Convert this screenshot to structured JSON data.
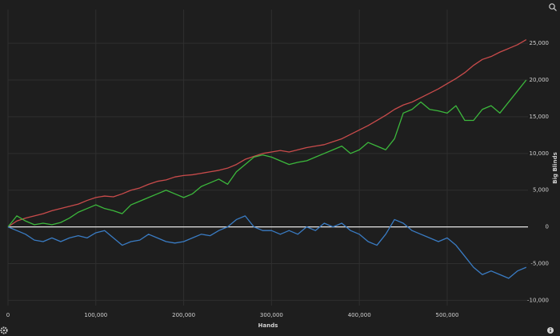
{
  "chart_data": {
    "type": "line",
    "xlabel": "Hands",
    "ylabel": "Big Blinds",
    "x": [
      0,
      10000,
      20000,
      30000,
      40000,
      50000,
      60000,
      70000,
      80000,
      90000,
      100000,
      110000,
      120000,
      130000,
      140000,
      150000,
      160000,
      170000,
      180000,
      190000,
      200000,
      210000,
      220000,
      230000,
      240000,
      250000,
      260000,
      270000,
      280000,
      290000,
      300000,
      310000,
      320000,
      330000,
      340000,
      350000,
      360000,
      370000,
      380000,
      390000,
      400000,
      410000,
      420000,
      430000,
      440000,
      450000,
      460000,
      470000,
      480000,
      490000,
      500000,
      510000,
      520000,
      530000,
      540000,
      550000,
      560000,
      570000,
      580000,
      590000
    ],
    "series": [
      {
        "color": "#c94b4b",
        "values": [
          0,
          800,
          1200,
          1500,
          1800,
          2200,
          2500,
          2800,
          3100,
          3600,
          4000,
          4200,
          4100,
          4500,
          5000,
          5300,
          5800,
          6200,
          6400,
          6800,
          7000,
          7100,
          7300,
          7500,
          7700,
          8000,
          8500,
          9200,
          9600,
          10000,
          10200,
          10400,
          10200,
          10500,
          10800,
          11000,
          11200,
          11600,
          12000,
          12600,
          13200,
          13800,
          14500,
          15200,
          16000,
          16600,
          17000,
          17600,
          18200,
          18800,
          19500,
          20200,
          21000,
          22000,
          22800,
          23200,
          23800,
          24300,
          24800,
          25500
        ]
      },
      {
        "color": "#3cb83c",
        "values": [
          0,
          1500,
          800,
          300,
          500,
          300,
          600,
          1200,
          2000,
          2500,
          3000,
          2500,
          2200,
          1800,
          3000,
          3500,
          4000,
          4500,
          5000,
          4500,
          4000,
          4500,
          5500,
          6000,
          6500,
          5800,
          7500,
          8500,
          9500,
          9800,
          9500,
          9000,
          8500,
          8800,
          9000,
          9500,
          10000,
          10500,
          11000,
          10000,
          10500,
          11500,
          11000,
          10500,
          12000,
          15500,
          16000,
          17000,
          16000,
          15800,
          15500,
          16500,
          14500,
          14500,
          16000,
          16500,
          15500,
          17000,
          18500,
          20000
        ]
      },
      {
        "color": "#3a7cc4",
        "values": [
          0,
          -500,
          -1000,
          -1800,
          -2000,
          -1500,
          -2000,
          -1500,
          -1200,
          -1500,
          -800,
          -500,
          -1500,
          -2500,
          -2000,
          -1800,
          -1000,
          -1500,
          -2000,
          -2200,
          -2000,
          -1500,
          -1000,
          -1200,
          -500,
          0,
          1000,
          1500,
          0,
          -500,
          -500,
          -1000,
          -500,
          -1000,
          0,
          -500,
          500,
          0,
          500,
          -500,
          -1000,
          -2000,
          -2500,
          -1000,
          1000,
          500,
          -500,
          -1000,
          -1500,
          -2000,
          -1500,
          -2500,
          -4000,
          -5500,
          -6500,
          -6000,
          -6500,
          -7000,
          -6000,
          -5500
        ]
      }
    ],
    "xlim": [
      0,
      592000
    ],
    "ylim": [
      -10500,
      28500
    ],
    "xticks": [
      0,
      {
        "value": 100000,
        "label": "100,000"
      },
      {
        "value": 200000,
        "label": "200,000"
      },
      {
        "value": 300000,
        "label": "300,000"
      },
      {
        "value": 400000,
        "label": "400,000"
      },
      {
        "value": 500000,
        "label": "500,000"
      }
    ],
    "yticks": [
      {
        "value": -10000,
        "label": "-10,000"
      },
      {
        "value": -5000,
        "label": "-5,000"
      },
      0,
      {
        "value": 5000,
        "label": "5,000"
      },
      {
        "value": 10000,
        "label": "10,000"
      },
      {
        "value": 15000,
        "label": "15,000"
      },
      {
        "value": 20000,
        "label": "20,000"
      },
      {
        "value": 25000,
        "label": "25,000"
      }
    ],
    "grid": true
  }
}
